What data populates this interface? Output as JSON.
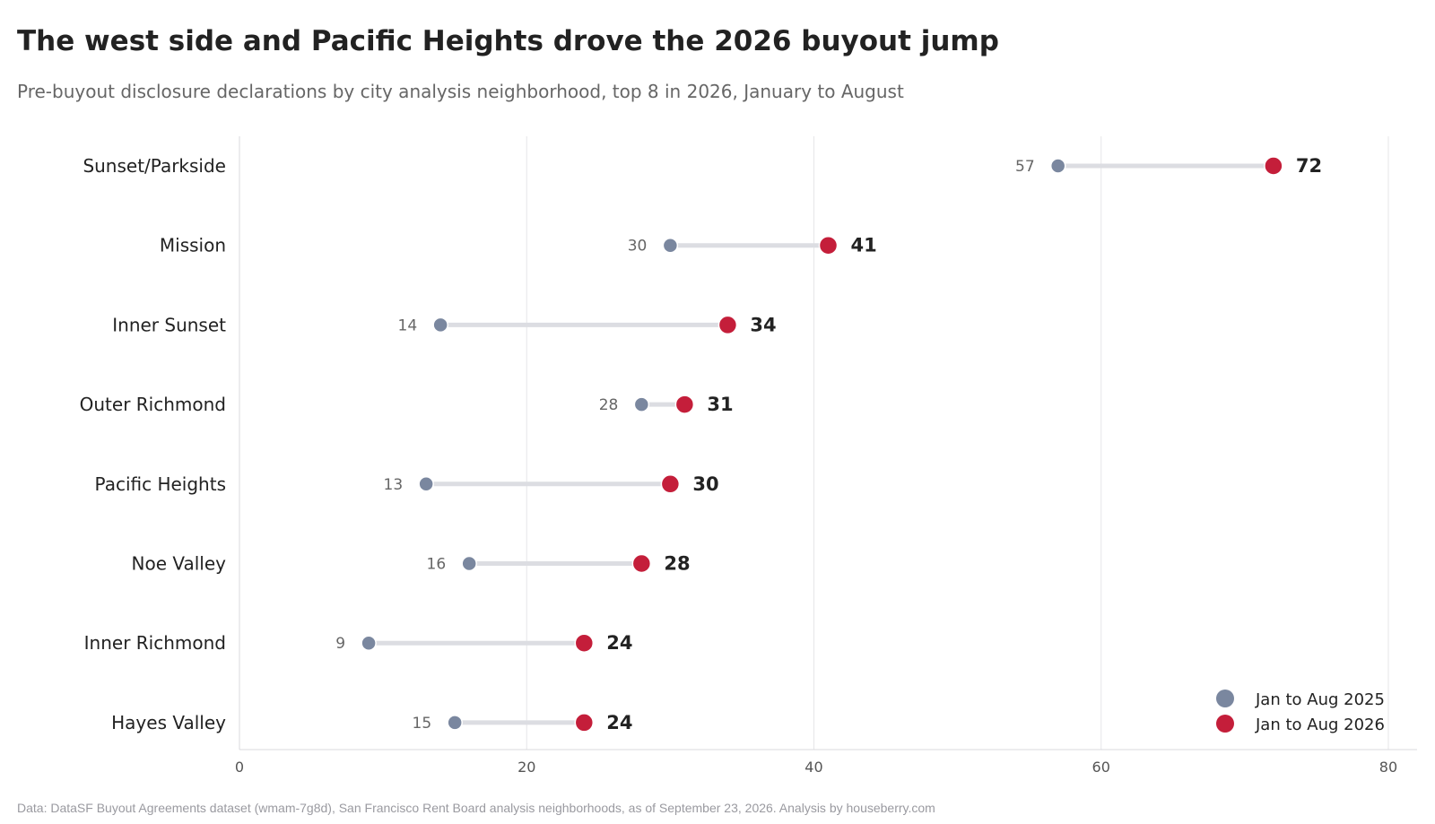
{
  "title": "The west side and Pacific Heights drove the 2026 buyout jump",
  "subtitle": "Pre-buyout disclosure declarations by city analysis neighborhood, top 8 in 2026, January to August",
  "source": "Data: DataSF Buyout Agreements dataset (wmam-7g8d), San Francisco Rent Board analysis neighborhoods, as of September 23, 2026. Analysis by houseberry.com",
  "chart_data": {
    "type": "dumbbell",
    "categories": [
      "Sunset/Parkside",
      "Mission",
      "Inner Sunset",
      "Outer Richmond",
      "Pacific Heights",
      "Noe Valley",
      "Inner Richmond",
      "Hayes Valley"
    ],
    "series": [
      {
        "name": "Jan to Aug 2025",
        "color": "#7a879f",
        "values": [
          57,
          30,
          14,
          28,
          13,
          16,
          9,
          15
        ]
      },
      {
        "name": "Jan to Aug 2026",
        "color": "#c41e3a",
        "values": [
          72,
          41,
          34,
          31,
          30,
          28,
          24,
          24
        ]
      }
    ],
    "xlim": [
      0,
      82
    ],
    "xticks": [
      0,
      20,
      40,
      60,
      80
    ],
    "connector_color": "#dcdde2",
    "grid": true,
    "legend": "bottom-right"
  }
}
